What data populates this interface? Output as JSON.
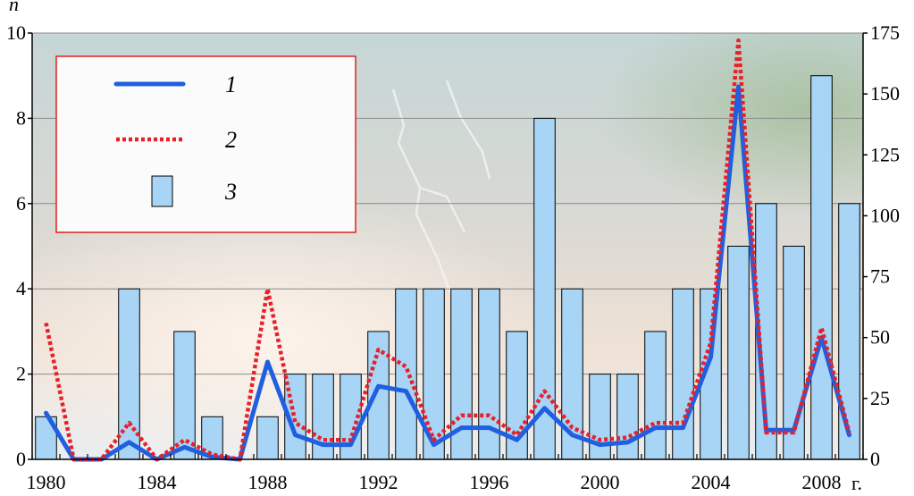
{
  "chart_data": {
    "type": "bar",
    "title": "",
    "x": [
      1980,
      1981,
      1982,
      1983,
      1984,
      1985,
      1986,
      1987,
      1988,
      1989,
      1990,
      1991,
      1992,
      1993,
      1994,
      1995,
      1996,
      1997,
      1998,
      1999,
      2000,
      2001,
      2002,
      2003,
      2004,
      2005,
      2006,
      2007,
      2008,
      2009
    ],
    "x_tick_labels": [
      "1980",
      "1984",
      "1988",
      "1992",
      "1996",
      "2000",
      "2004",
      "2008"
    ],
    "x_unit_label": "г.",
    "ylabel_left": "n",
    "ylim_left": [
      0,
      10
    ],
    "yticks_left": [
      "0",
      "2",
      "4",
      "6",
      "8",
      "10"
    ],
    "ylim_right": [
      0,
      175
    ],
    "yticks_right": [
      "0",
      "25",
      "50",
      "75",
      "100",
      "125",
      "150",
      "175"
    ],
    "grid": true,
    "legend_position": "top-left",
    "series": [
      {
        "name": "1",
        "kind": "line",
        "axis": "right",
        "color": "#1f5fe0",
        "style": "solid",
        "values": [
          19,
          0,
          0,
          7,
          0,
          5,
          1,
          0,
          40,
          10,
          6,
          6,
          30,
          28,
          6,
          13,
          13,
          8,
          21,
          10,
          6,
          7,
          13,
          13,
          42,
          153,
          12,
          12,
          50,
          10
        ]
      },
      {
        "name": "2",
        "kind": "line",
        "axis": "right",
        "color": "#e8202a",
        "style": "dotted",
        "values": [
          56,
          0,
          0,
          15,
          0,
          8,
          2,
          0,
          70,
          15,
          8,
          8,
          45,
          38,
          8,
          18,
          18,
          10,
          28,
          13,
          8,
          9,
          15,
          15,
          48,
          172,
          11,
          11,
          54,
          11
        ]
      },
      {
        "name": "3",
        "kind": "bar",
        "axis": "left",
        "color": "#a8d4f5",
        "edge": "#000000",
        "values": [
          1,
          0,
          0,
          4,
          0,
          3,
          1,
          0,
          1,
          2,
          2,
          2,
          3,
          4,
          4,
          4,
          4,
          3,
          8,
          4,
          2,
          2,
          3,
          4,
          4,
          5,
          6,
          5,
          9,
          6
        ]
      }
    ]
  }
}
